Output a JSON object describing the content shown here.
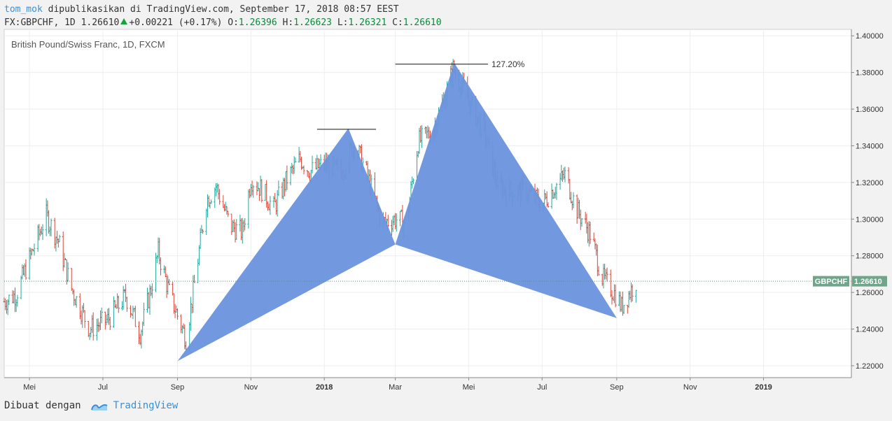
{
  "header": {
    "author": "tom_mok",
    "published_text": "dipublikasikan di TradingView.com, September 17, 2018 08:57 EEST",
    "symbol_line": "FX:GBPCHF, 1D 1.26610",
    "change": "+0.00221 (+0.17%)",
    "o_label": "O:",
    "o_value": "1.26396",
    "h_label": "H:",
    "h_value": "1.26623",
    "l_label": "L:",
    "l_value": "1.26321",
    "c_label": "C:",
    "c_value": "1.26610"
  },
  "footer": {
    "made_with": "Dibuat dengan",
    "brand": "TradingView"
  },
  "colors": {
    "pattern_fill": "#6a93de",
    "up_bar": "#26a69a",
    "down_bar": "#d9473b",
    "price_tag": "#6fa58a"
  },
  "chart_data": {
    "type": "ohlc",
    "title": "British Pound/Swiss Franc, 1D, FXCM",
    "grid": true,
    "ylim": [
      1.2135,
      1.4035
    ],
    "y_ticks": [
      1.22,
      1.24,
      1.26,
      1.28,
      1.3,
      1.32,
      1.34,
      1.36,
      1.38,
      1.4
    ],
    "y_tick_labels": [
      "1.22000",
      "1.24000",
      "1.26000",
      "1.28000",
      "1.30000",
      "1.32000",
      "1.34000",
      "1.36000",
      "1.38000",
      "1.40000"
    ],
    "x_range": [
      "2017-04-10",
      "2019-03-15"
    ],
    "x_ticks": [
      {
        "label": "Mei",
        "date": "2017-05-01",
        "bold": false
      },
      {
        "label": "Jul",
        "date": "2017-07-01",
        "bold": false
      },
      {
        "label": "Sep",
        "date": "2017-09-01",
        "bold": false
      },
      {
        "label": "Nov",
        "date": "2017-11-01",
        "bold": false
      },
      {
        "label": "2018",
        "date": "2018-01-01",
        "bold": true
      },
      {
        "label": "Mar",
        "date": "2018-03-01",
        "bold": false
      },
      {
        "label": "Mei",
        "date": "2018-05-01",
        "bold": false
      },
      {
        "label": "Jul",
        "date": "2018-07-01",
        "bold": false
      },
      {
        "label": "Sep",
        "date": "2018-09-01",
        "bold": false
      },
      {
        "label": "Nov",
        "date": "2018-11-01",
        "bold": false
      },
      {
        "label": "2019",
        "date": "2019-01-01",
        "bold": true
      }
    ],
    "close_path": [
      [
        "2017-04-10",
        1.255
      ],
      [
        "2017-04-20",
        1.259
      ],
      [
        "2017-05-05",
        1.285
      ],
      [
        "2017-05-15",
        1.302
      ],
      [
        "2017-05-25",
        1.288
      ],
      [
        "2017-06-05",
        1.262
      ],
      [
        "2017-06-20",
        1.24
      ],
      [
        "2017-07-05",
        1.245
      ],
      [
        "2017-07-20",
        1.258
      ],
      [
        "2017-08-01",
        1.238
      ],
      [
        "2017-08-10",
        1.262
      ],
      [
        "2017-08-16",
        1.282
      ],
      [
        "2017-08-25",
        1.26
      ],
      [
        "2017-09-08",
        1.235
      ],
      [
        "2017-09-14",
        1.26
      ],
      [
        "2017-09-25",
        1.31
      ],
      [
        "2017-10-03",
        1.318
      ],
      [
        "2017-10-15",
        1.296
      ],
      [
        "2017-10-25",
        1.293
      ],
      [
        "2017-11-01",
        1.322
      ],
      [
        "2017-11-10",
        1.316
      ],
      [
        "2017-11-20",
        1.306
      ],
      [
        "2017-12-01",
        1.322
      ],
      [
        "2017-12-12",
        1.333
      ],
      [
        "2017-12-20",
        1.326
      ],
      [
        "2018-01-01",
        1.33
      ],
      [
        "2018-01-15",
        1.325
      ],
      [
        "2018-01-26",
        1.342
      ],
      [
        "2018-02-05",
        1.325
      ],
      [
        "2018-02-18",
        1.298
      ],
      [
        "2018-03-01",
        1.3
      ],
      [
        "2018-03-10",
        1.298
      ],
      [
        "2018-03-20",
        1.342
      ],
      [
        "2018-04-01",
        1.348
      ],
      [
        "2018-04-12",
        1.368
      ],
      [
        "2018-04-18",
        1.382
      ],
      [
        "2018-05-01",
        1.365
      ],
      [
        "2018-05-15",
        1.345
      ],
      [
        "2018-05-25",
        1.318
      ],
      [
        "2018-06-05",
        1.315
      ],
      [
        "2018-06-18",
        1.315
      ],
      [
        "2018-07-01",
        1.308
      ],
      [
        "2018-07-12",
        1.318
      ],
      [
        "2018-07-20",
        1.324
      ],
      [
        "2018-07-30",
        1.305
      ],
      [
        "2018-08-10",
        1.292
      ],
      [
        "2018-08-20",
        1.268
      ],
      [
        "2018-09-01",
        1.258
      ],
      [
        "2018-09-05",
        1.252
      ],
      [
        "2018-09-17",
        1.2661
      ]
    ],
    "harmonic_pattern": {
      "points": [
        {
          "date": "2017-09-01",
          "price": 1.2225
        },
        {
          "date": "2018-01-21",
          "price": 1.3495
        },
        {
          "date": "2018-03-01",
          "price": 1.2862
        },
        {
          "date": "2018-04-19",
          "price": 1.3852
        },
        {
          "date": "2018-09-01",
          "price": 1.246
        }
      ]
    },
    "levels": [
      {
        "price": 1.349,
        "from": "2017-12-26",
        "to": "2018-02-13",
        "label": ""
      },
      {
        "price": 1.3845,
        "from": "2018-03-01",
        "to": "2018-05-17",
        "label": "127.20%"
      }
    ],
    "last_price": {
      "symbol": "GBPCHF",
      "value": 1.2661,
      "label": "1.26610"
    }
  }
}
